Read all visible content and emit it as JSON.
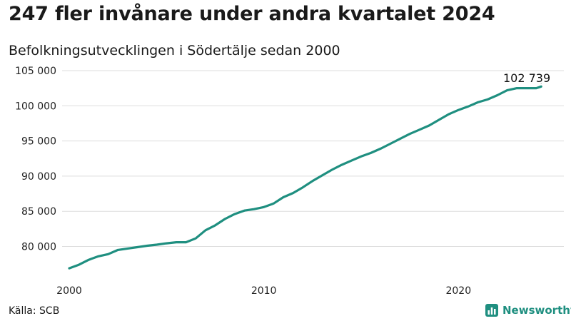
{
  "title": "247 fler invånare under andra kvartalet 2024",
  "subtitle": "Befolkningsutvecklingen i Södertälje sedan 2000",
  "source": "Källa: SCB",
  "brand": "Newsworthy",
  "colors": {
    "line": "#1f8f80",
    "grid": "#dddddd",
    "brand": "#1f8f80"
  },
  "chart_data": {
    "type": "line",
    "title": "247 fler invånare under andra kvartalet 2024",
    "subtitle": "Befolkningsutvecklingen i Södertälje sedan 2000",
    "xlabel": "",
    "ylabel": "",
    "xlim": [
      2000,
      2024.5
    ],
    "ylim": [
      76500,
      105000
    ],
    "x_ticks": [
      2000,
      2010,
      2020
    ],
    "x_tick_labels": [
      "2000",
      "2010",
      "2020"
    ],
    "y_ticks": [
      80000,
      85000,
      90000,
      95000,
      100000,
      105000
    ],
    "y_tick_labels": [
      "80 000",
      "85 000",
      "90 000",
      "95 000",
      "100 000",
      "105 000"
    ],
    "grid": true,
    "last_value_label": "102 739",
    "series": [
      {
        "name": "",
        "x": [
          2000,
          2000.5,
          2001,
          2001.5,
          2002,
          2002.5,
          2003,
          2003.5,
          2004,
          2004.5,
          2005,
          2005.5,
          2006,
          2006.5,
          2007,
          2007.5,
          2008,
          2008.5,
          2009,
          2009.5,
          2010,
          2010.5,
          2011,
          2011.5,
          2012,
          2012.5,
          2013,
          2013.5,
          2014,
          2014.5,
          2015,
          2015.5,
          2016,
          2016.5,
          2017,
          2017.5,
          2018,
          2018.5,
          2019,
          2019.5,
          2020,
          2020.5,
          2021,
          2021.5,
          2022,
          2022.5,
          2023,
          2023.5,
          2024,
          2024.25
        ],
        "y": [
          76900,
          77400,
          78100,
          78600,
          78900,
          79500,
          79700,
          79900,
          80100,
          80250,
          80450,
          80600,
          80600,
          81150,
          82300,
          83000,
          83900,
          84600,
          85100,
          85300,
          85600,
          86100,
          87000,
          87600,
          88400,
          89300,
          90100,
          90900,
          91600,
          92200,
          92800,
          93300,
          93900,
          94600,
          95300,
          96000,
          96600,
          97200,
          98000,
          98800,
          99400,
          99900,
          100500,
          100900,
          101500,
          102200,
          102500,
          102500,
          102500,
          102739
        ]
      }
    ]
  }
}
